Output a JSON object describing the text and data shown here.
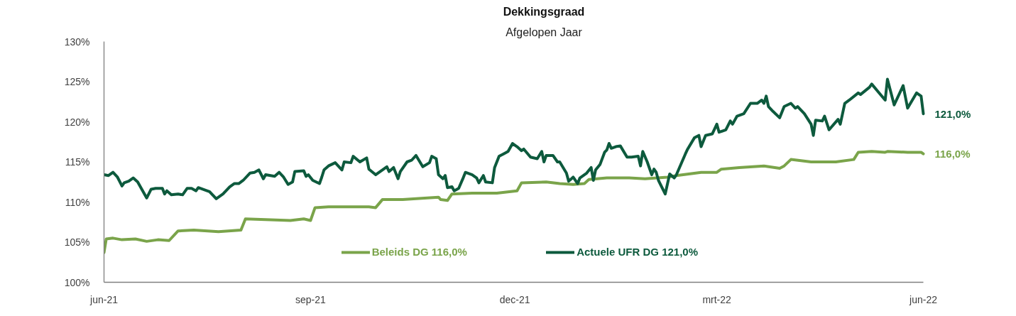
{
  "chart_data": {
    "type": "line",
    "title": "Dekkingsgraad",
    "subtitle": "Afgelopen Jaar",
    "xlim": [
      "2021-06-01",
      "2022-06-01"
    ],
    "xticks": [
      {
        "value": "2021-06-01",
        "label": "jun-21"
      },
      {
        "value": "2021-09-01",
        "label": "sep-21"
      },
      {
        "value": "2021-12-01",
        "label": "dec-21"
      },
      {
        "value": "2022-03-01",
        "label": "mrt-22"
      },
      {
        "value": "2022-06-01",
        "label": "jun-22"
      }
    ],
    "ylim": [
      100,
      130
    ],
    "yticks": [
      {
        "value": 100,
        "label": "100%"
      },
      {
        "value": 105,
        "label": "105%"
      },
      {
        "value": 110,
        "label": "110%"
      },
      {
        "value": 115,
        "label": "115%"
      },
      {
        "value": 120,
        "label": "120%"
      },
      {
        "value": 125,
        "label": "125%"
      },
      {
        "value": 130,
        "label": "130%"
      }
    ],
    "legend": "bottom",
    "line_style": "solid",
    "series": [
      {
        "name": "Beleids DG 116,0%",
        "color": "#7aa44a",
        "x": [
          "2021-06-01",
          "2021-06-02",
          "2021-06-05",
          "2021-06-09",
          "2021-06-15",
          "2021-06-20",
          "2021-06-25",
          "2021-06-30",
          "2021-07-04",
          "2021-07-11",
          "2021-07-22",
          "2021-08-01",
          "2021-08-03",
          "2021-08-12",
          "2021-08-23",
          "2021-08-29",
          "2021-09-01",
          "2021-09-03",
          "2021-09-09",
          "2021-09-20",
          "2021-09-27",
          "2021-09-30",
          "2021-10-03",
          "2021-10-12",
          "2021-10-23",
          "2021-10-28",
          "2021-10-29",
          "2021-11-01",
          "2021-11-03",
          "2021-11-12",
          "2021-11-23",
          "2021-12-02",
          "2021-12-04",
          "2021-12-15",
          "2021-12-21",
          "2021-12-27",
          "2022-01-01",
          "2022-01-03",
          "2022-01-11",
          "2022-01-21",
          "2022-01-28",
          "2022-02-07",
          "2022-02-11",
          "2022-02-22",
          "2022-03-01",
          "2022-03-03",
          "2022-03-11",
          "2022-03-22",
          "2022-03-29",
          "2022-03-31",
          "2022-04-03",
          "2022-04-12",
          "2022-04-23",
          "2022-05-01",
          "2022-05-03",
          "2022-05-09",
          "2022-05-15",
          "2022-05-16",
          "2022-05-25",
          "2022-05-31",
          "2022-06-01"
        ],
        "values": [
          103.7,
          105.4,
          105.5,
          105.3,
          105.4,
          105.1,
          105.3,
          105.2,
          106.4,
          106.5,
          106.3,
          106.5,
          107.9,
          107.8,
          107.7,
          107.9,
          107.7,
          109.3,
          109.4,
          109.4,
          109.4,
          109.3,
          110.3,
          110.3,
          110.5,
          110.6,
          110.3,
          110.2,
          111.0,
          111.1,
          111.1,
          111.4,
          112.4,
          112.5,
          112.3,
          112.2,
          112.3,
          112.8,
          113.0,
          113.0,
          112.9,
          113.1,
          113.3,
          113.7,
          113.7,
          114.1,
          114.3,
          114.5,
          114.2,
          114.5,
          115.3,
          115.0,
          115.0,
          115.3,
          116.2,
          116.3,
          116.2,
          116.3,
          116.2,
          116.2,
          116.0
        ]
      },
      {
        "name": "Actuele UFR DG 121,0%",
        "color": "#0d5a3d",
        "x": [
          "2021-06-01",
          "2021-06-03",
          "2021-06-05",
          "2021-06-07",
          "2021-06-09",
          "2021-06-10",
          "2021-06-12",
          "2021-06-14",
          "2021-06-16",
          "2021-06-20",
          "2021-06-22",
          "2021-06-24",
          "2021-06-27",
          "2021-06-28",
          "2021-06-29",
          "2021-07-01",
          "2021-07-04",
          "2021-07-06",
          "2021-07-08",
          "2021-07-10",
          "2021-07-12",
          "2021-07-13",
          "2021-07-16",
          "2021-07-18",
          "2021-07-21",
          "2021-07-24",
          "2021-07-27",
          "2021-07-29",
          "2021-07-31",
          "2021-08-02",
          "2021-08-05",
          "2021-08-07",
          "2021-08-09",
          "2021-08-11",
          "2021-08-12",
          "2021-08-16",
          "2021-08-18",
          "2021-08-20",
          "2021-08-22",
          "2021-08-24",
          "2021-08-25",
          "2021-08-29",
          "2021-08-30",
          "2021-08-31",
          "2021-09-02",
          "2021-09-05",
          "2021-09-06",
          "2021-09-07",
          "2021-09-09",
          "2021-09-12",
          "2021-09-15",
          "2021-09-16",
          "2021-09-19",
          "2021-09-20",
          "2021-09-23",
          "2021-09-26",
          "2021-09-27",
          "2021-09-30",
          "2021-10-03",
          "2021-10-05",
          "2021-10-06",
          "2021-10-08",
          "2021-10-10",
          "2021-10-11",
          "2021-10-14",
          "2021-10-16",
          "2021-10-18",
          "2021-10-21",
          "2021-10-24",
          "2021-10-25",
          "2021-10-27",
          "2021-10-28",
          "2021-10-30",
          "2021-10-31",
          "2021-11-01",
          "2021-11-03",
          "2021-11-04",
          "2021-11-06",
          "2021-11-08",
          "2021-11-09",
          "2021-11-12",
          "2021-11-14",
          "2021-11-15",
          "2021-11-17",
          "2021-11-18",
          "2021-11-21",
          "2021-11-22",
          "2021-11-24",
          "2021-11-26",
          "2021-11-28",
          "2021-11-30",
          "2021-12-02",
          "2021-12-04",
          "2021-12-05",
          "2021-12-08",
          "2021-12-11",
          "2021-12-13",
          "2021-12-14",
          "2021-12-15",
          "2021-12-18",
          "2021-12-20",
          "2021-12-21",
          "2021-12-24",
          "2021-12-25",
          "2021-12-27",
          "2021-12-29",
          "2021-12-30",
          "2022-01-02",
          "2022-01-04",
          "2022-01-05",
          "2022-01-06",
          "2022-01-08",
          "2022-01-10",
          "2022-01-11",
          "2022-01-12",
          "2022-01-13",
          "2022-01-15",
          "2022-01-17",
          "2022-01-20",
          "2022-01-22",
          "2022-01-25",
          "2022-01-26",
          "2022-01-27",
          "2022-01-29",
          "2022-01-31",
          "2022-02-01",
          "2022-02-02",
          "2022-02-03",
          "2022-02-06",
          "2022-02-08",
          "2022-02-10",
          "2022-02-11",
          "2022-02-15",
          "2022-02-16",
          "2022-02-19",
          "2022-02-21",
          "2022-02-22",
          "2022-02-24",
          "2022-02-27",
          "2022-03-01",
          "2022-03-02",
          "2022-03-05",
          "2022-03-07",
          "2022-03-08",
          "2022-03-10",
          "2022-03-13",
          "2022-03-16",
          "2022-03-19",
          "2022-03-21",
          "2022-03-22",
          "2022-03-23",
          "2022-03-24",
          "2022-03-26",
          "2022-03-29",
          "2022-03-31",
          "2022-04-03",
          "2022-04-05",
          "2022-04-06",
          "2022-04-09",
          "2022-04-12",
          "2022-04-13",
          "2022-04-14",
          "2022-04-17",
          "2022-04-18",
          "2022-04-20",
          "2022-04-24",
          "2022-04-25",
          "2022-04-27",
          "2022-04-29",
          "2022-05-03",
          "2022-05-04",
          "2022-05-08",
          "2022-05-09",
          "2022-05-12",
          "2022-05-15",
          "2022-05-16",
          "2022-05-19",
          "2022-05-23",
          "2022-05-25",
          "2022-05-29",
          "2022-05-31",
          "2022-06-01"
        ],
        "values": [
          113.4,
          113.3,
          113.7,
          113.1,
          112.0,
          112.4,
          112.6,
          113.0,
          112.5,
          110.5,
          111.6,
          111.7,
          111.7,
          111.0,
          111.4,
          110.9,
          111.0,
          110.9,
          111.7,
          111.7,
          111.4,
          111.8,
          111.5,
          111.3,
          110.4,
          111.0,
          111.9,
          112.3,
          112.3,
          112.7,
          113.6,
          113.7,
          114.0,
          112.9,
          113.4,
          113.2,
          113.7,
          113.1,
          112.2,
          112.5,
          113.8,
          113.9,
          113.2,
          113.4,
          112.7,
          112.3,
          113.1,
          114.0,
          114.5,
          114.9,
          114.0,
          115.0,
          114.9,
          115.7,
          115.0,
          115.5,
          114.1,
          113.4,
          114.0,
          114.4,
          113.8,
          114.3,
          112.9,
          113.8,
          115.0,
          115.2,
          115.8,
          114.4,
          114.9,
          115.7,
          115.4,
          113.4,
          112.9,
          113.3,
          111.8,
          111.9,
          111.4,
          111.7,
          113.0,
          113.7,
          113.4,
          113.0,
          112.4,
          113.3,
          112.5,
          112.4,
          114.3,
          115.7,
          116.0,
          116.3,
          117.3,
          116.9,
          116.4,
          116.6,
          115.6,
          115.4,
          116.3,
          115.0,
          115.8,
          115.8,
          115.0,
          115.0,
          113.6,
          112.6,
          113.1,
          112.3,
          113.0,
          113.6,
          114.3,
          112.7,
          114.0,
          114.7,
          116.2,
          116.5,
          117.3,
          116.7,
          116.9,
          117.0,
          115.6,
          115.6,
          115.7,
          114.5,
          116.3,
          115.0,
          113.4,
          114.1,
          113.7,
          112.7,
          111.0,
          113.5,
          113.0,
          113.4,
          116.0,
          116.6,
          118.0,
          118.3,
          116.9,
          118.3,
          118.5,
          119.7,
          118.7,
          119.0,
          120.1,
          119.7,
          120.7,
          121.0,
          122.3,
          122.3,
          122.7,
          122.3,
          123.2,
          121.9,
          121.3,
          120.5,
          121.9,
          122.3,
          121.7,
          121.9,
          121.0,
          119.7,
          118.3,
          120.2,
          120.1,
          120.7,
          119.0,
          120.3,
          119.7,
          122.3,
          122.7,
          123.6,
          123.4,
          124.3,
          124.7,
          123.7,
          122.7,
          125.3,
          122.1,
          124.5,
          121.7,
          123.6,
          123.2,
          121.0
        ]
      }
    ],
    "annotations": [
      {
        "text": "121,0%",
        "x": "2022-06-01",
        "y": 121.0
      },
      {
        "text": "116,0%",
        "x": "2022-06-01",
        "y": 116.0
      }
    ]
  }
}
